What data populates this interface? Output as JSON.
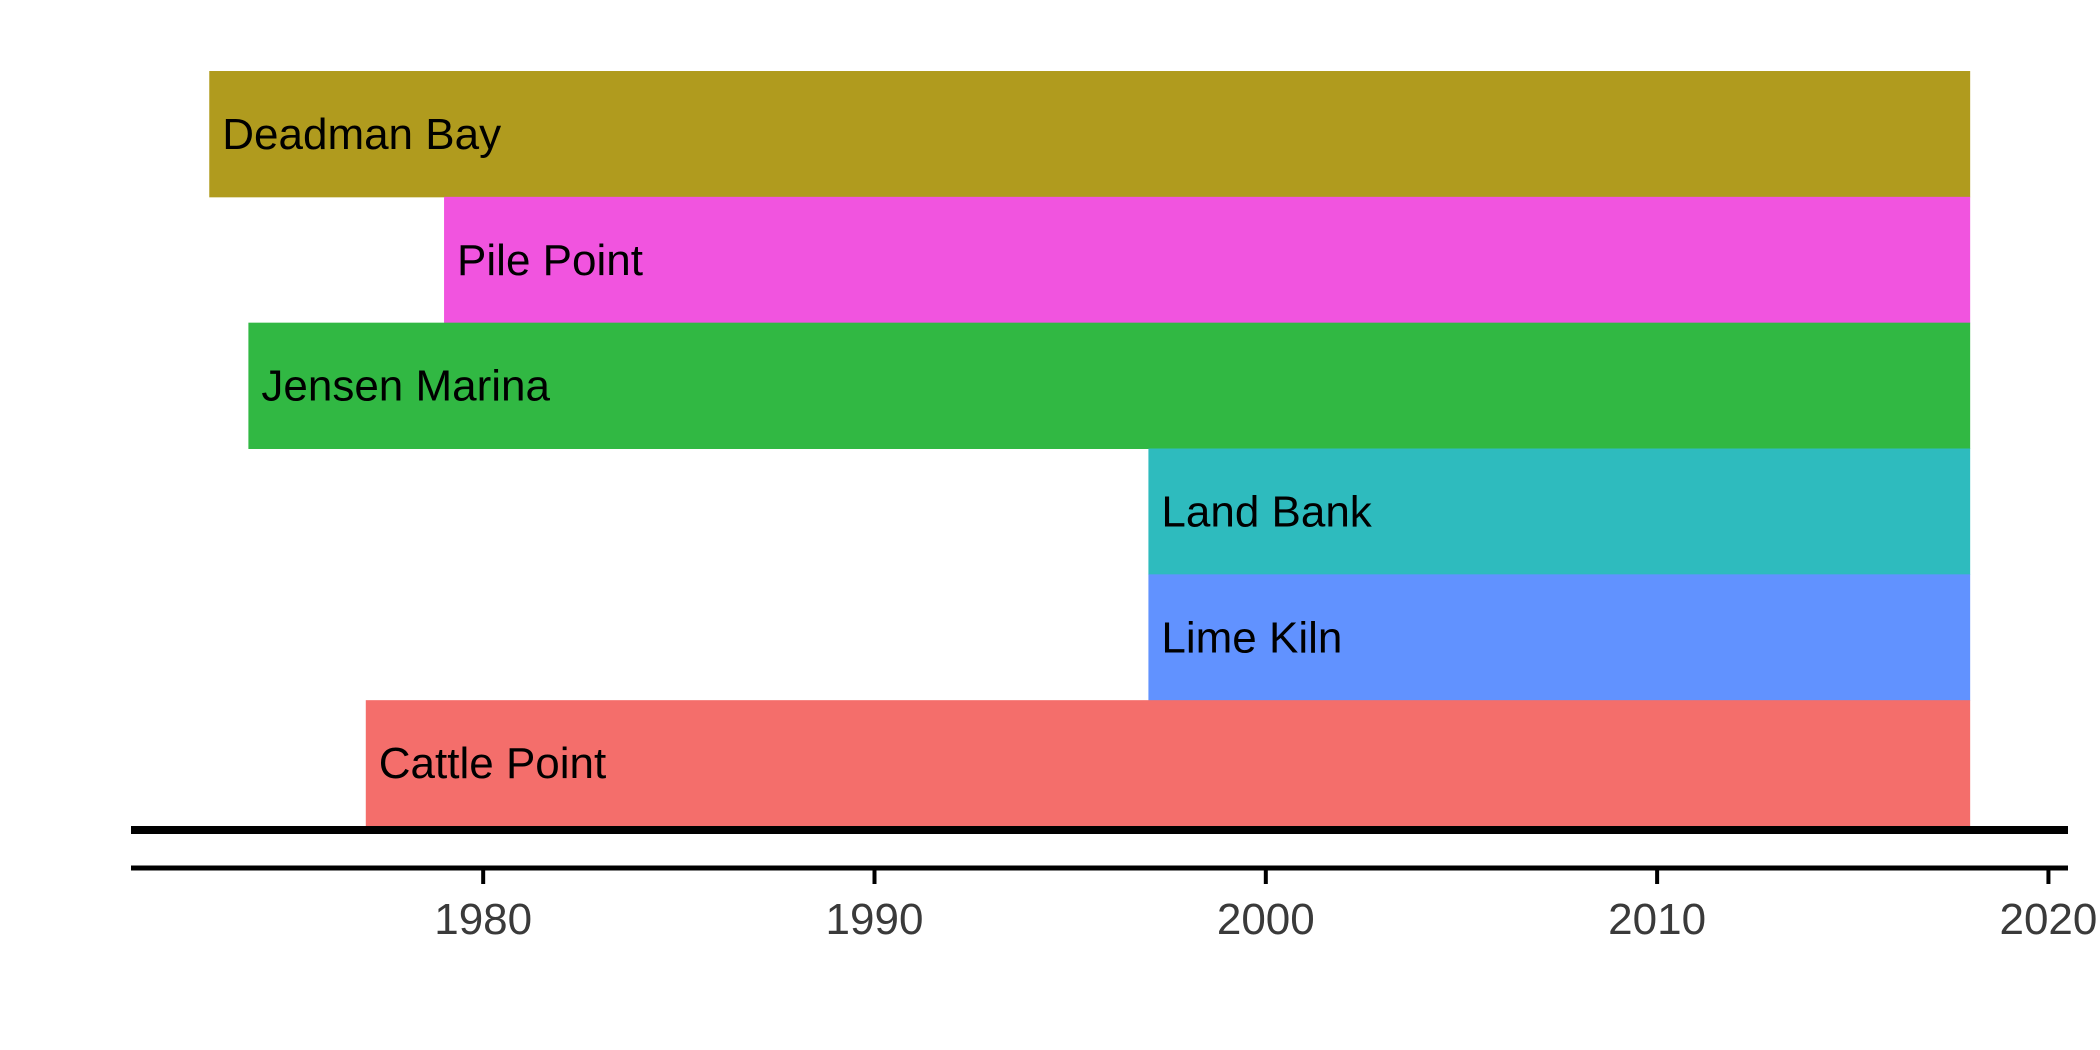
{
  "chart_data": {
    "type": "bar",
    "orientation": "horizontal",
    "title": "",
    "xlabel": "",
    "ylabel": "",
    "xlim": [
      1971,
      2020.5
    ],
    "x_ticks": [
      1980,
      1990,
      2000,
      2010,
      2020
    ],
    "grid": false,
    "legend": "none",
    "bars": [
      {
        "name": "Deadman Bay",
        "start": 1973,
        "end": 2018,
        "color": "#B09B1E"
      },
      {
        "name": "Pile Point",
        "start": 1979,
        "end": 2018,
        "color": "#F154DF"
      },
      {
        "name": "Jensen Marina",
        "start": 1974,
        "end": 2018,
        "color": "#31B843"
      },
      {
        "name": "Land Bank",
        "start": 1997,
        "end": 2018,
        "color": "#2EBBBE"
      },
      {
        "name": "Lime Kiln",
        "start": 1997,
        "end": 2018,
        "color": "#6192FF"
      },
      {
        "name": "Cattle Point",
        "start": 1977,
        "end": 2018,
        "color": "#F46E6B"
      }
    ]
  }
}
